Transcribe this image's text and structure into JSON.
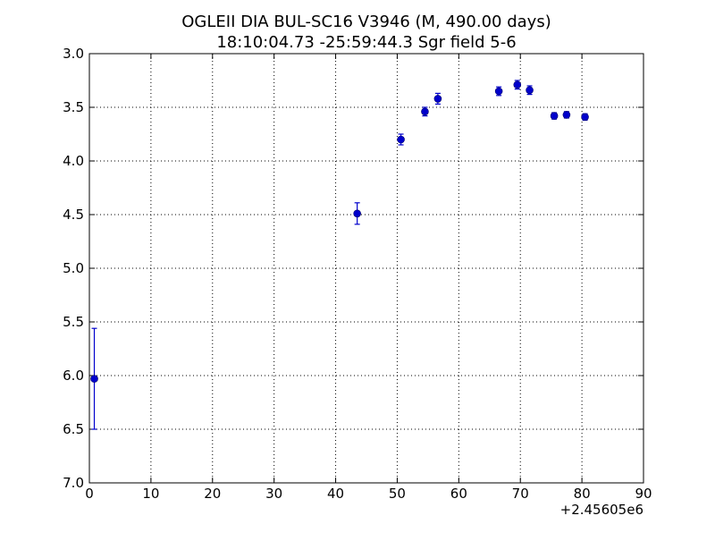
{
  "chart_data": {
    "type": "scatter",
    "title": "OGLEII DIA BUL-SC16 V3946  (M, 490.00 days)",
    "subtitle": "18:10:04.73 -25:59:44.3 Sgr field 5-6",
    "xlabel": "",
    "ylabel": "",
    "x_offset_label": "+2.45605e6",
    "xlim": [
      0,
      90
    ],
    "ylim": [
      3.0,
      7.0
    ],
    "y_inverted": true,
    "grid": true,
    "grid_style": "dotted",
    "x_ticks": [
      "0",
      "10",
      "20",
      "30",
      "40",
      "50",
      "60",
      "70",
      "80",
      "90"
    ],
    "y_ticks": [
      "3.0",
      "3.5",
      "4.0",
      "4.5",
      "5.0",
      "5.5",
      "6.0",
      "6.5",
      "7.0"
    ],
    "marker_color": "#0000cc",
    "errorbar_color": "#0000cc",
    "series": [
      {
        "points": [
          {
            "x": 0.8,
            "y": 6.03,
            "err": 0.47
          },
          {
            "x": 43.5,
            "y": 4.49,
            "err": 0.1
          },
          {
            "x": 50.6,
            "y": 3.8,
            "err": 0.05
          },
          {
            "x": 54.5,
            "y": 3.54,
            "err": 0.04
          },
          {
            "x": 56.6,
            "y": 3.42,
            "err": 0.05
          },
          {
            "x": 66.5,
            "y": 3.35,
            "err": 0.04
          },
          {
            "x": 69.5,
            "y": 3.29,
            "err": 0.04
          },
          {
            "x": 71.5,
            "y": 3.34,
            "err": 0.04
          },
          {
            "x": 75.5,
            "y": 3.58,
            "err": 0.03
          },
          {
            "x": 77.5,
            "y": 3.57,
            "err": 0.03
          },
          {
            "x": 80.5,
            "y": 3.59,
            "err": 0.03
          }
        ]
      }
    ]
  }
}
